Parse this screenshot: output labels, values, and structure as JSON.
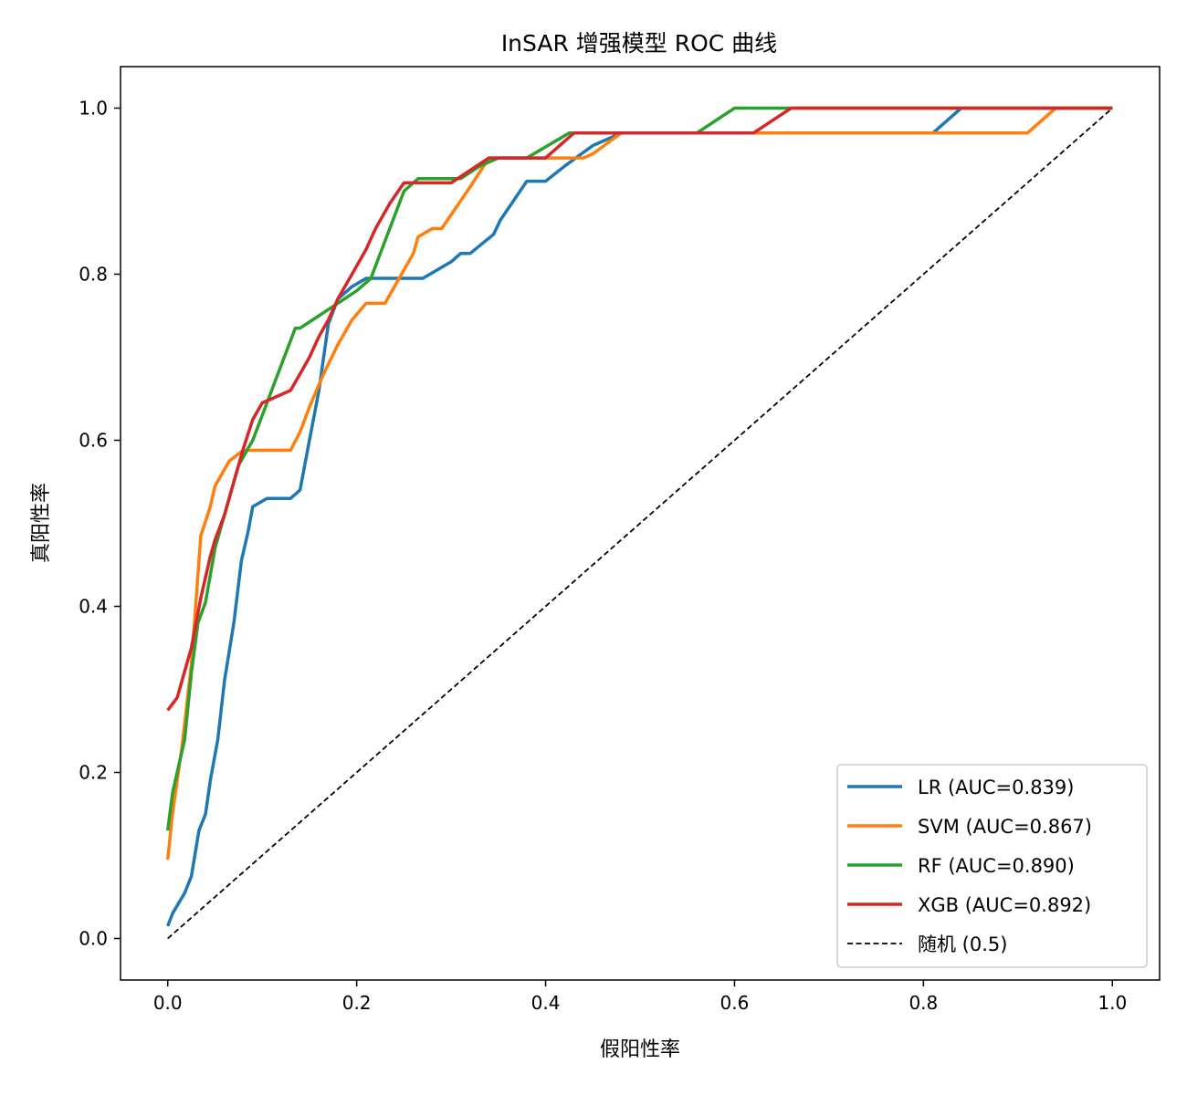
{
  "chart_data": {
    "type": "line",
    "title": "InSAR 增强模型 ROC 曲线",
    "xlabel": "假阳性率",
    "ylabel": "真阳性率",
    "xlim": [
      -0.05,
      1.05
    ],
    "ylim": [
      -0.05,
      1.05
    ],
    "xticks": [
      {
        "value": 0.0,
        "label": "0.0"
      },
      {
        "value": 0.2,
        "label": "0.2"
      },
      {
        "value": 0.4,
        "label": "0.4"
      },
      {
        "value": 0.6,
        "label": "0.6"
      },
      {
        "value": 0.8,
        "label": "0.8"
      },
      {
        "value": 1.0,
        "label": "1.0"
      }
    ],
    "yticks": [
      {
        "value": 0.0,
        "label": "0.0"
      },
      {
        "value": 0.2,
        "label": "0.2"
      },
      {
        "value": 0.4,
        "label": "0.4"
      },
      {
        "value": 0.6,
        "label": "0.6"
      },
      {
        "value": 0.8,
        "label": "0.8"
      },
      {
        "value": 1.0,
        "label": "1.0"
      }
    ],
    "grid": false,
    "legend_position": "lower-right",
    "series": [
      {
        "name": "LR (AUC=0.839)",
        "color": "#1f77b4",
        "dash": "solid",
        "points": [
          [
            0.0,
            0.015
          ],
          [
            0.005,
            0.03
          ],
          [
            0.018,
            0.055
          ],
          [
            0.025,
            0.075
          ],
          [
            0.033,
            0.13
          ],
          [
            0.04,
            0.15
          ],
          [
            0.045,
            0.19
          ],
          [
            0.053,
            0.24
          ],
          [
            0.06,
            0.31
          ],
          [
            0.07,
            0.38
          ],
          [
            0.078,
            0.455
          ],
          [
            0.085,
            0.49
          ],
          [
            0.09,
            0.52
          ],
          [
            0.105,
            0.53
          ],
          [
            0.13,
            0.53
          ],
          [
            0.14,
            0.54
          ],
          [
            0.15,
            0.6
          ],
          [
            0.16,
            0.66
          ],
          [
            0.17,
            0.74
          ],
          [
            0.18,
            0.77
          ],
          [
            0.195,
            0.785
          ],
          [
            0.21,
            0.795
          ],
          [
            0.27,
            0.795
          ],
          [
            0.3,
            0.815
          ],
          [
            0.31,
            0.825
          ],
          [
            0.32,
            0.825
          ],
          [
            0.345,
            0.848
          ],
          [
            0.352,
            0.865
          ],
          [
            0.38,
            0.912
          ],
          [
            0.4,
            0.912
          ],
          [
            0.42,
            0.93
          ],
          [
            0.45,
            0.955
          ],
          [
            0.48,
            0.97
          ],
          [
            0.81,
            0.97
          ],
          [
            0.84,
            1.0
          ],
          [
            1.0,
            1.0
          ]
        ]
      },
      {
        "name": "SVM (AUC=0.867)",
        "color": "#ff7f0e",
        "dash": "solid",
        "points": [
          [
            0.0,
            0.095
          ],
          [
            0.005,
            0.15
          ],
          [
            0.015,
            0.23
          ],
          [
            0.025,
            0.33
          ],
          [
            0.035,
            0.485
          ],
          [
            0.045,
            0.52
          ],
          [
            0.05,
            0.545
          ],
          [
            0.065,
            0.575
          ],
          [
            0.08,
            0.588
          ],
          [
            0.13,
            0.588
          ],
          [
            0.14,
            0.61
          ],
          [
            0.15,
            0.64
          ],
          [
            0.165,
            0.68
          ],
          [
            0.18,
            0.715
          ],
          [
            0.195,
            0.745
          ],
          [
            0.21,
            0.765
          ],
          [
            0.23,
            0.765
          ],
          [
            0.24,
            0.785
          ],
          [
            0.26,
            0.825
          ],
          [
            0.265,
            0.845
          ],
          [
            0.28,
            0.855
          ],
          [
            0.29,
            0.855
          ],
          [
            0.32,
            0.905
          ],
          [
            0.34,
            0.94
          ],
          [
            0.44,
            0.94
          ],
          [
            0.45,
            0.945
          ],
          [
            0.48,
            0.97
          ],
          [
            0.91,
            0.97
          ],
          [
            0.94,
            1.0
          ],
          [
            1.0,
            1.0
          ]
        ]
      },
      {
        "name": "RF (AUC=0.890)",
        "color": "#2ca02c",
        "dash": "solid",
        "points": [
          [
            0.0,
            0.13
          ],
          [
            0.005,
            0.175
          ],
          [
            0.012,
            0.21
          ],
          [
            0.018,
            0.24
          ],
          [
            0.025,
            0.32
          ],
          [
            0.032,
            0.38
          ],
          [
            0.04,
            0.405
          ],
          [
            0.05,
            0.47
          ],
          [
            0.06,
            0.51
          ],
          [
            0.075,
            0.57
          ],
          [
            0.09,
            0.6
          ],
          [
            0.1,
            0.63
          ],
          [
            0.11,
            0.66
          ],
          [
            0.125,
            0.705
          ],
          [
            0.135,
            0.735
          ],
          [
            0.14,
            0.735
          ],
          [
            0.16,
            0.75
          ],
          [
            0.18,
            0.765
          ],
          [
            0.2,
            0.78
          ],
          [
            0.215,
            0.795
          ],
          [
            0.225,
            0.825
          ],
          [
            0.25,
            0.9
          ],
          [
            0.265,
            0.915
          ],
          [
            0.31,
            0.915
          ],
          [
            0.33,
            0.93
          ],
          [
            0.35,
            0.94
          ],
          [
            0.38,
            0.94
          ],
          [
            0.425,
            0.97
          ],
          [
            0.56,
            0.97
          ],
          [
            0.6,
            1.0
          ],
          [
            1.0,
            1.0
          ]
        ]
      },
      {
        "name": "XGB (AUC=0.892)",
        "color": "#d62728",
        "dash": "solid",
        "points": [
          [
            0.0,
            0.275
          ],
          [
            0.01,
            0.29
          ],
          [
            0.015,
            0.31
          ],
          [
            0.025,
            0.35
          ],
          [
            0.035,
            0.41
          ],
          [
            0.045,
            0.46
          ],
          [
            0.05,
            0.48
          ],
          [
            0.06,
            0.51
          ],
          [
            0.07,
            0.55
          ],
          [
            0.08,
            0.59
          ],
          [
            0.09,
            0.625
          ],
          [
            0.1,
            0.645
          ],
          [
            0.11,
            0.65
          ],
          [
            0.13,
            0.66
          ],
          [
            0.14,
            0.68
          ],
          [
            0.15,
            0.7
          ],
          [
            0.16,
            0.725
          ],
          [
            0.17,
            0.745
          ],
          [
            0.18,
            0.77
          ],
          [
            0.195,
            0.8
          ],
          [
            0.21,
            0.83
          ],
          [
            0.22,
            0.855
          ],
          [
            0.235,
            0.885
          ],
          [
            0.25,
            0.91
          ],
          [
            0.3,
            0.91
          ],
          [
            0.34,
            0.94
          ],
          [
            0.4,
            0.94
          ],
          [
            0.43,
            0.97
          ],
          [
            0.62,
            0.97
          ],
          [
            0.66,
            1.0
          ],
          [
            1.0,
            1.0
          ]
        ]
      },
      {
        "name": "随机 (0.5)",
        "color": "#000000",
        "dash": "dashed",
        "points": [
          [
            0.0,
            0.0
          ],
          [
            1.0,
            1.0
          ]
        ]
      }
    ]
  }
}
